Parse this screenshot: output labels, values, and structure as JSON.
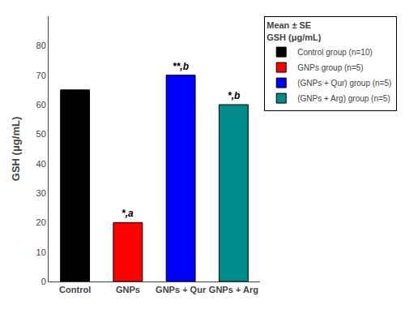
{
  "chart_data": {
    "type": "bar",
    "categories": [
      "Control",
      "GNPs",
      "GNPs + Qur",
      "GNPs + Arg"
    ],
    "series": [
      {
        "name": "Control group (n=10)",
        "color": "#000000",
        "values": [
          65.0,
          null,
          null,
          null
        ]
      },
      {
        "name": "GNPs group (n=5)",
        "color": "#ff0000",
        "values": [
          null,
          20.0,
          null,
          null
        ]
      },
      {
        "name": "(GNPs + Qur) group (n=5)",
        "color": "#0000ff",
        "values": [
          null,
          null,
          70.0,
          null
        ]
      },
      {
        "name": "(GNPs + Arg) group (n=5)",
        "color": "#008B8B",
        "values": [
          null,
          null,
          null,
          60.0
        ]
      }
    ],
    "ylim": [
      0,
      90
    ],
    "yticks": [
      0,
      10,
      20,
      30,
      40,
      50,
      60,
      70,
      80
    ],
    "ylabel": "GSH (μg/mL)",
    "annotations": [
      {
        "category": "GNPs",
        "text": "*,a"
      },
      {
        "category": "GNPs + Qur",
        "text": "**,b"
      },
      {
        "category": "GNPs + Arg",
        "text": "*,b"
      }
    ],
    "legend": "right",
    "legend_title": [
      "Mean ± SE",
      "GSH (μg/mL)"
    ],
    "grid": false
  }
}
